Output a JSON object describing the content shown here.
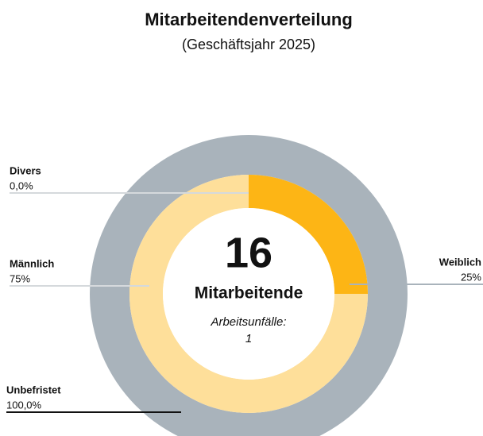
{
  "chart_data": {
    "type": "donut",
    "title": "Mitarbeitendenverteilung",
    "subtitle": "(Geschäftsjahr 2025)",
    "center": {
      "value": 16,
      "label": "Mitarbeitende",
      "note_label": "Arbeitsunfälle:",
      "note_value": 1
    },
    "rings": [
      {
        "categories": [
          "Unbefristet"
        ],
        "values": [
          100
        ],
        "value_labels": [
          "100,0%"
        ],
        "colors": [
          "#a9b3bb"
        ]
      },
      {
        "categories": [
          "Weiblich",
          "Männlich",
          "Divers"
        ],
        "values": [
          25,
          75,
          0
        ],
        "value_labels": [
          "25%",
          "75%",
          "0,0%"
        ],
        "colors": [
          "#fdb515",
          "#fedf9a",
          "#c9ced2"
        ]
      }
    ]
  }
}
